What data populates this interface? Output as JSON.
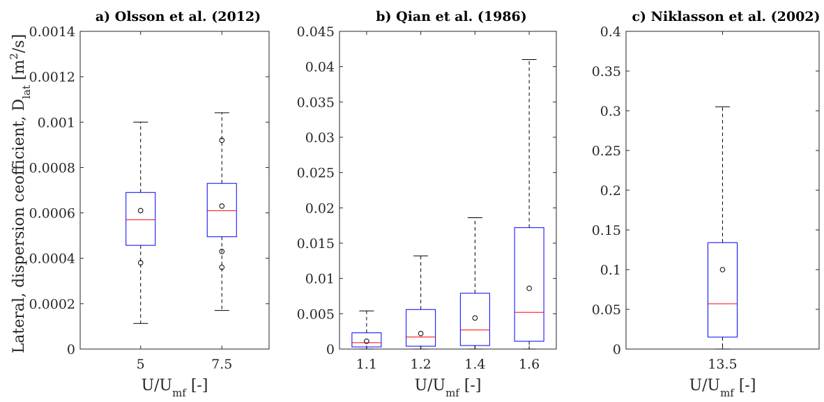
{
  "chart_data": [
    {
      "type": "box",
      "title": "a) Olsson et al. (2012)",
      "xlabel": {
        "base": "U/U",
        "sub": "mf",
        "suffix": " [-]"
      },
      "ylabel": {
        "base": "Lateral, dispersion ceofficient, D",
        "sub": "lat",
        "suffix": " [m",
        "sup": "2",
        "tail": "/s]"
      },
      "ylim": [
        0,
        0.0014
      ],
      "yticks": [
        "0",
        "0.0002",
        "0.0004",
        "0.0006",
        "0.0008",
        "0.001",
        "0.0012",
        "0.0014"
      ],
      "categories": [
        "5",
        "7.5"
      ],
      "boxes": [
        {
          "category": "5",
          "whisker_low": 0.000113,
          "q1": 0.000457,
          "median": 0.00057,
          "q3": 0.00069,
          "whisker_high": 0.001,
          "mean": 0.00061,
          "outliers": [
            0.00038
          ]
        },
        {
          "category": "7.5",
          "whisker_low": 0.00017,
          "q1": 0.000495,
          "median": 0.00061,
          "q3": 0.00073,
          "whisker_high": 0.001041,
          "mean": 0.00063,
          "outliers": [
            0.00092,
            0.00043,
            0.00036
          ]
        }
      ]
    },
    {
      "type": "box",
      "title": "b) Qian et al. (1986)",
      "xlabel": {
        "base": "U/U",
        "sub": "mf",
        "suffix": " [-]"
      },
      "ylim": [
        0,
        0.045
      ],
      "yticks": [
        "0",
        "0.005",
        "0.01",
        "0.015",
        "0.02",
        "0.025",
        "0.03",
        "0.035",
        "0.04",
        "0.045"
      ],
      "categories": [
        "1.1",
        "1.2",
        "1.4",
        "1.6"
      ],
      "boxes": [
        {
          "category": "1.1",
          "whisker_low": 0,
          "q1": 0.0003,
          "median": 0.0009,
          "q3": 0.0023,
          "whisker_high": 0.0054,
          "mean": 0.0011,
          "outliers": []
        },
        {
          "category": "1.2",
          "whisker_low": 0,
          "q1": 0.0004,
          "median": 0.0017,
          "q3": 0.0056,
          "whisker_high": 0.0132,
          "mean": 0.0022,
          "outliers": []
        },
        {
          "category": "1.4",
          "whisker_low": 0,
          "q1": 0.0005,
          "median": 0.0027,
          "q3": 0.0079,
          "whisker_high": 0.0186,
          "mean": 0.0044,
          "outliers": []
        },
        {
          "category": "1.6",
          "whisker_low": 0,
          "q1": 0.0011,
          "median": 0.0052,
          "q3": 0.0172,
          "whisker_high": 0.041,
          "mean": 0.0086,
          "outliers": []
        }
      ]
    },
    {
      "type": "box",
      "title": "c) Niklasson et al. (2002)",
      "xlabel": {
        "base": "U/U",
        "sub": "mf",
        "suffix": " [-]"
      },
      "ylim": [
        0,
        0.4
      ],
      "yticks": [
        "0",
        "0.05",
        "0.1",
        "0.15",
        "0.2",
        "0.25",
        "0.3",
        "0.35",
        "0.4"
      ],
      "categories": [
        "13.5"
      ],
      "boxes": [
        {
          "category": "13.5",
          "whisker_low": 0,
          "q1": 0.015,
          "median": 0.057,
          "q3": 0.134,
          "whisker_high": 0.305,
          "mean": 0.1,
          "outliers": []
        }
      ]
    }
  ],
  "colors": {
    "box": "#0000ff",
    "median": "#ff0000",
    "whisker": "#000000",
    "axes": "#262626"
  }
}
